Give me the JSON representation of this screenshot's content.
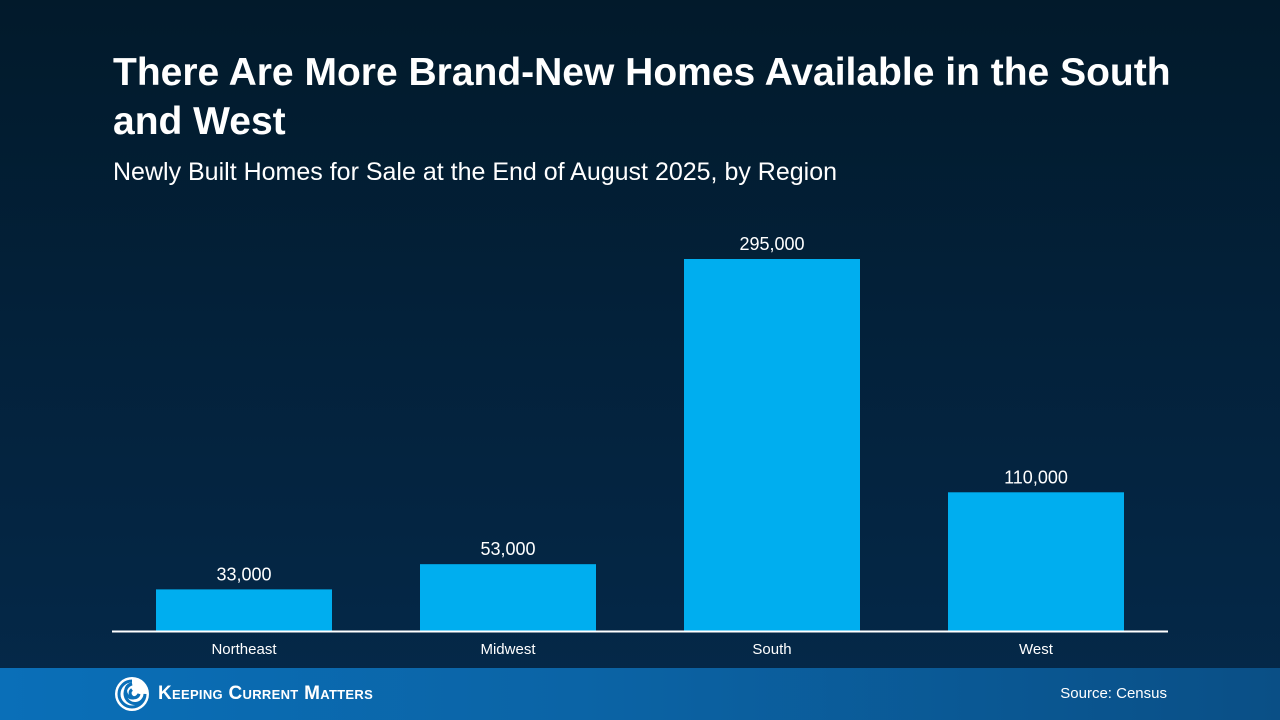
{
  "header": {
    "title": "There Are More Brand-New Homes Available in the South and West",
    "subtitle": "Newly Built Homes for Sale at the End of August 2025, by Region"
  },
  "chart_data": {
    "type": "bar",
    "title": "There Are More Brand-New Homes Available in the South and West",
    "subtitle": "Newly Built Homes for Sale at the End of August 2025, by Region",
    "categories": [
      "Northeast",
      "Midwest",
      "South",
      "West"
    ],
    "values": [
      33000,
      53000,
      295000,
      110000
    ],
    "data_labels": [
      "33,000",
      "53,000",
      "295,000",
      "110,000"
    ],
    "xlabel": "",
    "ylabel": "",
    "ylim": [
      0,
      295000
    ],
    "grid": false,
    "legend": "none",
    "bar_color": "#00aeef",
    "axis_color": "#ffffff"
  },
  "footer": {
    "logo_text": "Keeping Current Matters",
    "logo_icon": "swirl-icon",
    "source": "Source: Census"
  }
}
